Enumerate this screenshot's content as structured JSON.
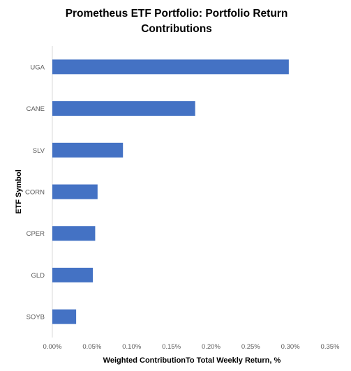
{
  "chart_data": {
    "type": "bar",
    "orientation": "horizontal",
    "title": "Prometheus ETF Portfolio: Portfolio Return Contributions",
    "title_lines": [
      "Prometheus ETF Portfolio: Portfolio Return",
      "Contributions"
    ],
    "xlabel": "Weighted ContributionTo Total Weekly Return, %",
    "ylabel": "ETF Symbol",
    "categories": [
      "UGA",
      "CANE",
      "SLV",
      "CORN",
      "CPER",
      "GLD",
      "SOYB"
    ],
    "values": [
      0.298,
      0.18,
      0.089,
      0.057,
      0.054,
      0.051,
      0.03
    ],
    "value_unit": "%",
    "xlim": [
      0,
      0.35
    ],
    "xticks": [
      0,
      0.05,
      0.1,
      0.15,
      0.2,
      0.25,
      0.3,
      0.35
    ],
    "xtick_labels": [
      "0.00%",
      "0.05%",
      "0.10%",
      "0.15%",
      "0.20%",
      "0.25%",
      "0.30%",
      "0.35%"
    ],
    "bar_color": "#4472C4",
    "grid": false,
    "legend": "none"
  }
}
